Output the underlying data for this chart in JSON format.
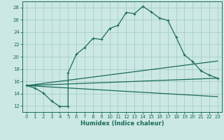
{
  "xlabel": "Humidex (Indice chaleur)",
  "bg_color": "#cce8e4",
  "grid_color": "#a0c8c4",
  "line_color": "#1a6b5a",
  "xlim": [
    -0.5,
    23.5
  ],
  "ylim": [
    11,
    29
  ],
  "xticks": [
    0,
    1,
    2,
    3,
    4,
    5,
    6,
    7,
    8,
    9,
    10,
    11,
    12,
    13,
    14,
    15,
    16,
    17,
    18,
    19,
    20,
    21,
    22,
    23
  ],
  "yticks": [
    12,
    14,
    16,
    18,
    20,
    22,
    24,
    26,
    28
  ],
  "line1_x": [
    0,
    1,
    2,
    3,
    4,
    5,
    5,
    6,
    7,
    8,
    9,
    10,
    11,
    12,
    13,
    14,
    15,
    16,
    17,
    18,
    19,
    20,
    21,
    22,
    23
  ],
  "line1_y": [
    15.3,
    14.9,
    14.1,
    12.8,
    11.9,
    11.9,
    17.4,
    20.4,
    21.5,
    23.0,
    22.8,
    24.6,
    25.1,
    27.2,
    27.0,
    28.2,
    27.3,
    26.3,
    25.9,
    23.2,
    20.3,
    19.2,
    17.7,
    17.0,
    16.5
  ],
  "line2_x": [
    0,
    23
  ],
  "line2_y": [
    15.3,
    16.5
  ],
  "line3_x": [
    0,
    23
  ],
  "line3_y": [
    15.3,
    19.3
  ],
  "line4_x": [
    0,
    23
  ],
  "line4_y": [
    15.3,
    13.5
  ]
}
